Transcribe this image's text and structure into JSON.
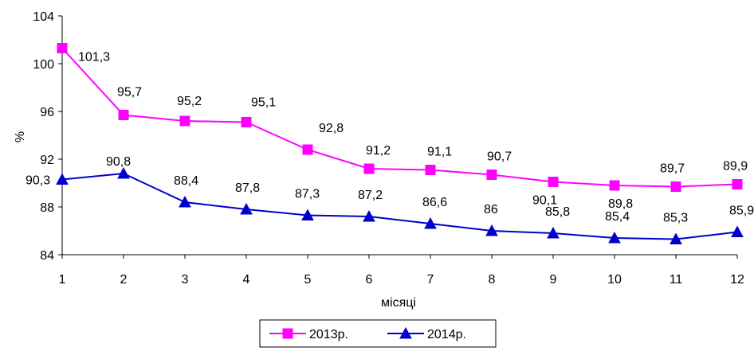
{
  "chart_data": {
    "type": "line",
    "xlabel": "місяці",
    "ylabel": "%",
    "categories": [
      "1",
      "2",
      "3",
      "4",
      "5",
      "6",
      "7",
      "8",
      "9",
      "10",
      "11",
      "12"
    ],
    "ylim": [
      84,
      104
    ],
    "yticks": [
      "84",
      "88",
      "92",
      "96",
      "100",
      "104"
    ],
    "grid": false,
    "legend_position": "bottom-center",
    "series": [
      {
        "name": "2013р.",
        "color": "#ff00ff",
        "marker": "square",
        "values": [
          101.3,
          95.7,
          95.2,
          95.1,
          92.8,
          91.2,
          91.1,
          90.7,
          90.1,
          89.8,
          89.7,
          89.9
        ],
        "labels": [
          "101,3",
          "95,7",
          "95,2",
          "95,1",
          "92,8",
          "91,2",
          "91,1",
          "90,7",
          "90,1",
          "89,8",
          "89,7",
          "89,9"
        ]
      },
      {
        "name": "2014р.",
        "color": "#0000cc",
        "marker": "triangle",
        "values": [
          90.3,
          90.8,
          88.4,
          87.8,
          87.3,
          87.2,
          86.6,
          86,
          85.8,
          85.4,
          85.3,
          85.9
        ],
        "labels": [
          "90,3",
          "90,8",
          "88,4",
          "87,8",
          "87,3",
          "87,2",
          "86,6",
          "86",
          "85,8",
          "85,4",
          "85,3",
          "85,9"
        ]
      }
    ]
  }
}
